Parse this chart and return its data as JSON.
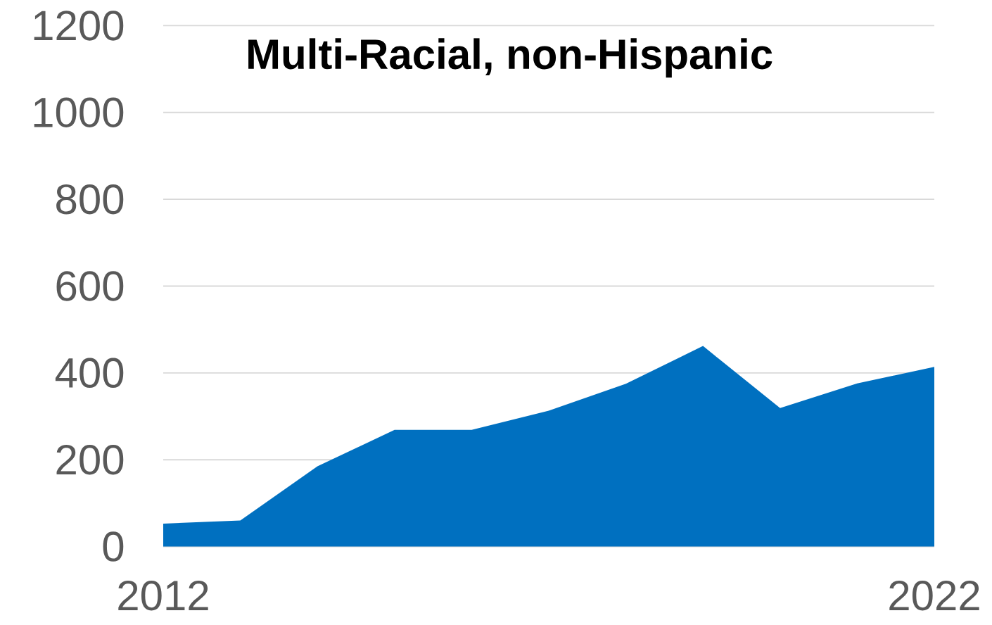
{
  "chart_data": {
    "type": "area",
    "title": "Multi-Racial, non-Hispanic",
    "x": [
      2012,
      2013,
      2014,
      2015,
      2016,
      2017,
      2018,
      2019,
      2020,
      2021,
      2022
    ],
    "values": [
      53,
      60,
      185,
      269,
      269,
      313,
      375,
      462,
      319,
      376,
      414
    ],
    "color": "#0070c0",
    "xlim": [
      2012,
      2022
    ],
    "xticks": [
      2012,
      2022
    ],
    "ylim": [
      0,
      1200
    ],
    "yticks": [
      0,
      200,
      400,
      600,
      800,
      1000,
      1200
    ],
    "grid": "y"
  }
}
